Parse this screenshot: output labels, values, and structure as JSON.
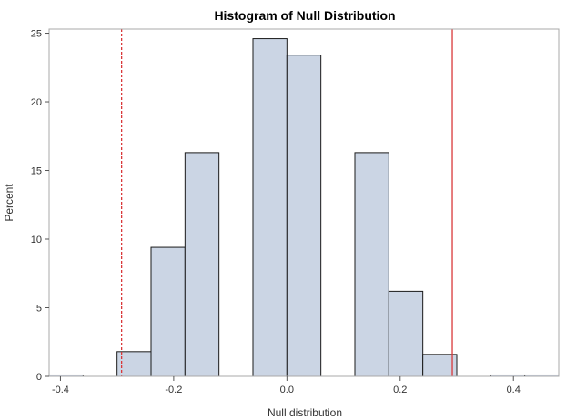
{
  "chart_data": {
    "type": "bar",
    "title": "Histogram of Null Distribution",
    "xlabel": "Null distribution",
    "ylabel": "Percent",
    "xlim": [
      -0.42,
      0.48
    ],
    "ylim": [
      0,
      25.3
    ],
    "xticks": [
      -0.4,
      -0.2,
      0.0,
      0.2,
      0.4
    ],
    "xtick_labels": [
      "-0.4",
      "-0.2",
      "0.0",
      "0.2",
      "0.4"
    ],
    "yticks": [
      0,
      5,
      10,
      15,
      20,
      25
    ],
    "ytick_labels": [
      "0",
      "5",
      "10",
      "15",
      "20",
      "25"
    ],
    "bin_width": 0.06,
    "bins": [
      {
        "x0": -0.42,
        "x1": -0.36,
        "value": 0.1
      },
      {
        "x0": -0.3,
        "x1": -0.24,
        "value": 1.8
      },
      {
        "x0": -0.24,
        "x1": -0.18,
        "value": 9.4
      },
      {
        "x0": -0.18,
        "x1": -0.12,
        "value": 16.3
      },
      {
        "x0": -0.06,
        "x1": 0.0,
        "value": 24.6
      },
      {
        "x0": 0.0,
        "x1": 0.06,
        "value": 23.4
      },
      {
        "x0": 0.12,
        "x1": 0.18,
        "value": 16.3
      },
      {
        "x0": 0.18,
        "x1": 0.24,
        "value": 6.2
      },
      {
        "x0": 0.24,
        "x1": 0.3,
        "value": 1.6
      },
      {
        "x0": 0.36,
        "x1": 0.42,
        "value": 0.1
      },
      {
        "x0": 0.42,
        "x1": 0.48,
        "value": 0.1
      }
    ],
    "reference_lines": [
      {
        "x": -0.292,
        "style": "dashed",
        "color": "#d9383a"
      },
      {
        "x": 0.292,
        "style": "solid",
        "color": "#d9383a"
      }
    ],
    "grid": false,
    "legend": "none",
    "colors": {
      "bar_fill": "#cbd5e4",
      "bar_stroke": "#1a1a1a",
      "reference": "#d9383a"
    }
  }
}
